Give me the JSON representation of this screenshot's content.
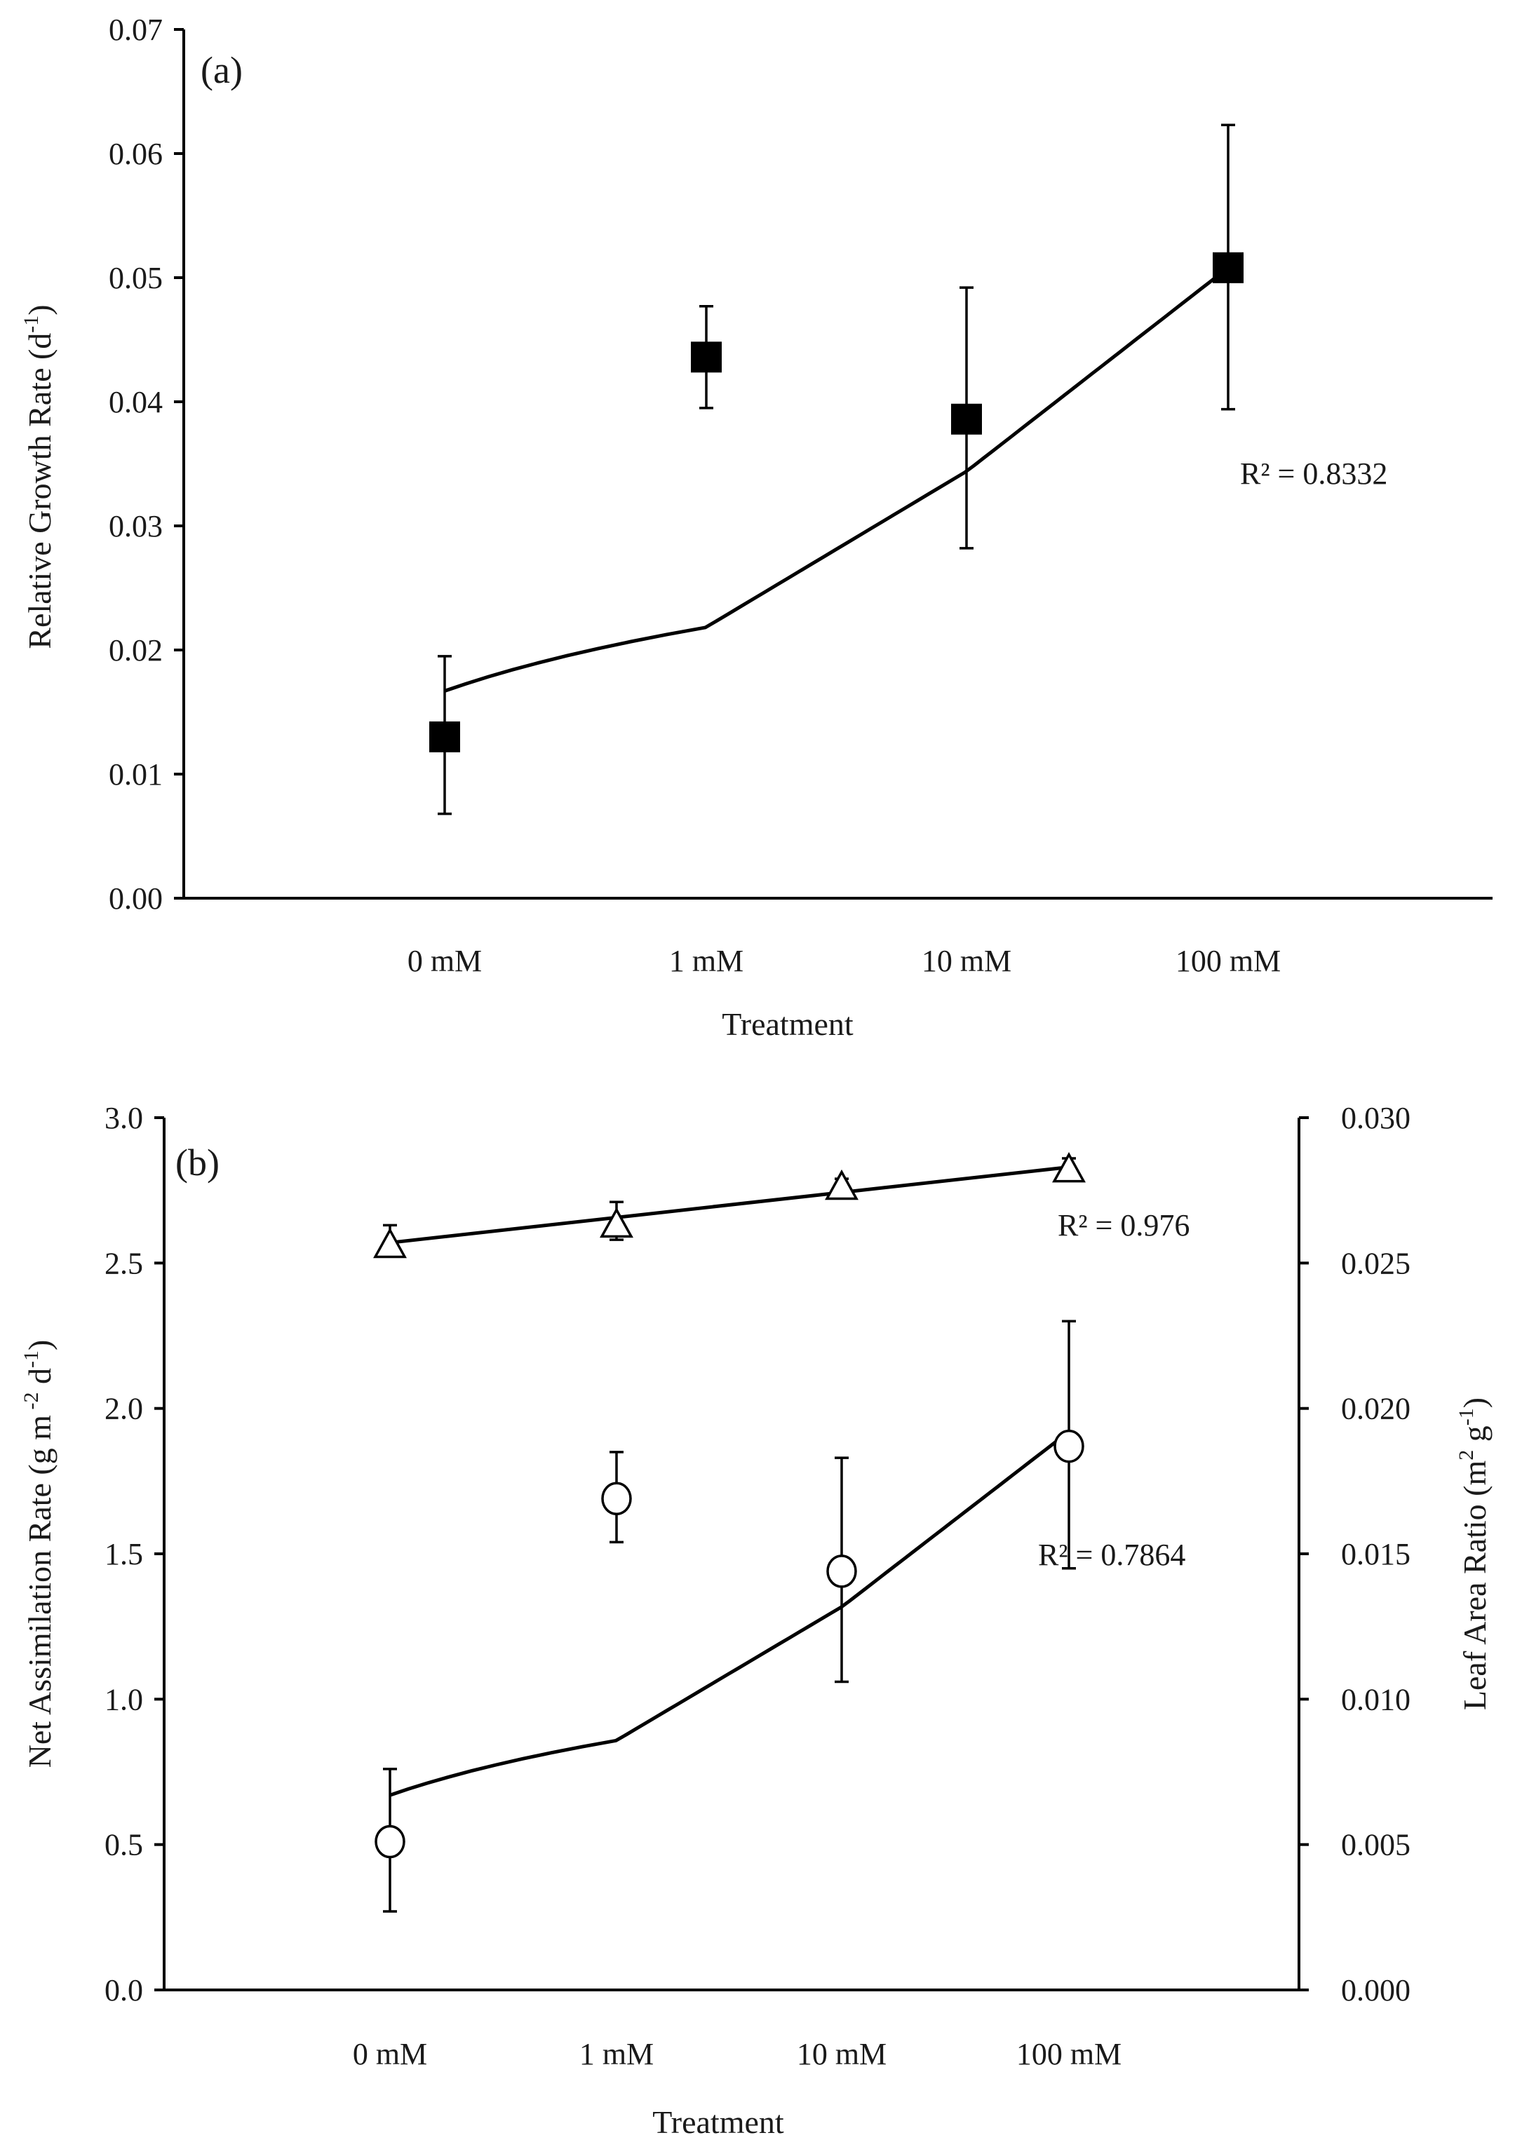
{
  "chart_data": [
    {
      "id": "a",
      "type": "scatter",
      "panel_label": "(a)",
      "xlabel": "Treatment",
      "ylabel_main": "Relative Growth Rate (d",
      "ylabel_sup": "-1",
      "ylabel_end": ")",
      "categories": [
        "0 mM",
        "1 mM",
        "10 mM",
        "100 mM"
      ],
      "ylim": [
        0,
        0.07
      ],
      "yticks": [
        "0.00",
        "0.01",
        "0.02",
        "0.03",
        "0.04",
        "0.05",
        "0.06",
        "0.07"
      ],
      "series": [
        {
          "name": "RGR",
          "marker": "filled-square",
          "values": [
            0.013,
            0.0436,
            0.0386,
            0.0508
          ],
          "err_low": [
            0.0068,
            0.0395,
            0.0282,
            0.0394
          ],
          "err_high": [
            0.0195,
            0.0477,
            0.0492,
            0.0623
          ],
          "trend": {
            "type": "log",
            "start": 0.0167,
            "end": 0.0508,
            "r2": "R² = 0.8332"
          }
        }
      ]
    },
    {
      "id": "b",
      "type": "scatter",
      "panel_label": "(b)",
      "xlabel": "Treatment",
      "ylabel_left_main": "Net Assimilation Rate (g m",
      "ylabel_left_sup1": " -2",
      "ylabel_left_mid": " d",
      "ylabel_left_sup2": "-1",
      "ylabel_left_end": ")",
      "ylabel_right_main": "Leaf Area Ratio (m",
      "ylabel_right_sup1": "2",
      "ylabel_right_mid": " g",
      "ylabel_right_sup2": "-1",
      "ylabel_right_end": ")",
      "categories": [
        "0 mM",
        "1 mM",
        "10 mM",
        "100 mM"
      ],
      "ylim_left": [
        0,
        3.0
      ],
      "yticks_left": [
        "0.0",
        "0.5",
        "1.0",
        "1.5",
        "2.0",
        "2.5",
        "3.0"
      ],
      "ylim_right": [
        0,
        0.03
      ],
      "yticks_right": [
        "0.000",
        "0.005",
        "0.010",
        "0.015",
        "0.020",
        "0.025",
        "0.030"
      ],
      "series": [
        {
          "name": "Net Assimilation Rate",
          "axis": "left",
          "marker": "open-circle",
          "values": [
            0.51,
            1.69,
            1.44,
            1.87
          ],
          "err_low": [
            0.27,
            1.54,
            1.06,
            1.45
          ],
          "err_high": [
            0.76,
            1.85,
            1.83,
            2.3
          ],
          "trend": {
            "type": "log",
            "start": 0.67,
            "end": 1.92,
            "r2": "R² = 0.7864"
          }
        },
        {
          "name": "Leaf Area Ratio",
          "axis": "right",
          "marker": "open-triangle",
          "values": [
            0.0256,
            0.0263,
            0.0276,
            0.0282
          ],
          "err_low": [
            0.0253,
            0.0258,
            0.0274,
            0.0279
          ],
          "err_high": [
            0.0263,
            0.0271,
            0.0279,
            0.0286
          ],
          "trend": {
            "type": "linear",
            "start": 0.0257,
            "end": 0.0283,
            "r2": "R² = 0.976"
          }
        }
      ]
    }
  ]
}
